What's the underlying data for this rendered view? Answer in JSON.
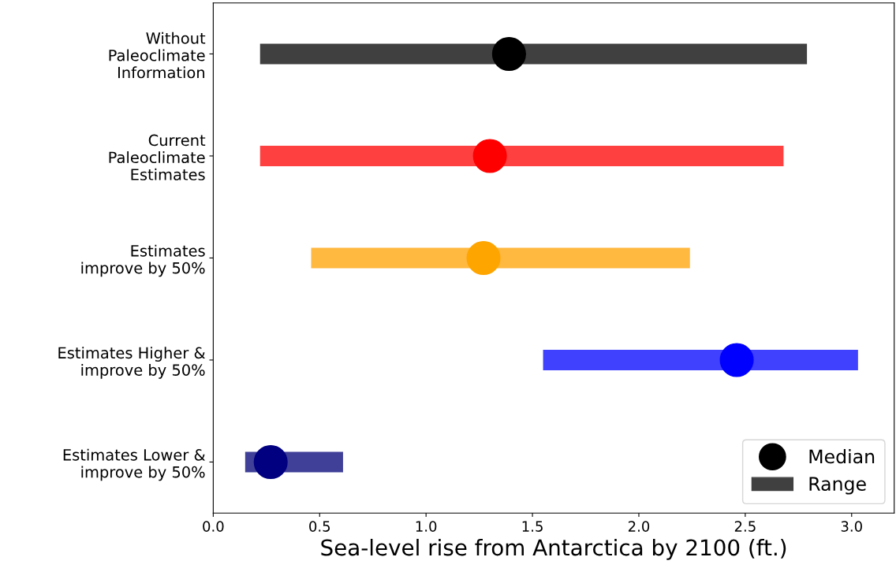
{
  "chart_data": {
    "type": "bar",
    "orientation": "horizontal",
    "categories": [
      "Without\nPaleoclimate\nInformation",
      "Current\nPaleoclimate\nEstimates",
      "Estimates\nimprove by 50%",
      "Estimates Higher &\nimprove by 50%",
      "Estimates Lower &\nimprove by 50%"
    ],
    "series": [
      {
        "name": "Median",
        "type": "scatter",
        "marker": "circle",
        "values": [
          1.39,
          1.3,
          1.27,
          2.46,
          0.27
        ],
        "colors": [
          "#000000",
          "#ff0000",
          "#ffa500",
          "#0000ff",
          "#000080"
        ]
      },
      {
        "name": "Range",
        "base": [
          0.22,
          0.22,
          0.46,
          1.55,
          0.15
        ],
        "values": [
          2.57,
          2.46,
          1.78,
          1.48,
          0.46
        ],
        "colors": [
          "#404040",
          "#ff4040",
          "#ffb840",
          "#4040ff",
          "#404099"
        ]
      }
    ],
    "xlabel": "Sea-level rise from Antarctica by 2100 (ft.)",
    "xlim": [
      0,
      3.2
    ],
    "xticks": [
      {
        "value": 0,
        "label": "0.0"
      },
      0.5,
      {
        "value": 1,
        "label": "1.0"
      },
      1.5,
      {
        "value": 2,
        "label": "2.0"
      },
      2.5,
      {
        "value": 3,
        "label": "3.0"
      }
    ],
    "legend": "lower right",
    "grid": false
  }
}
